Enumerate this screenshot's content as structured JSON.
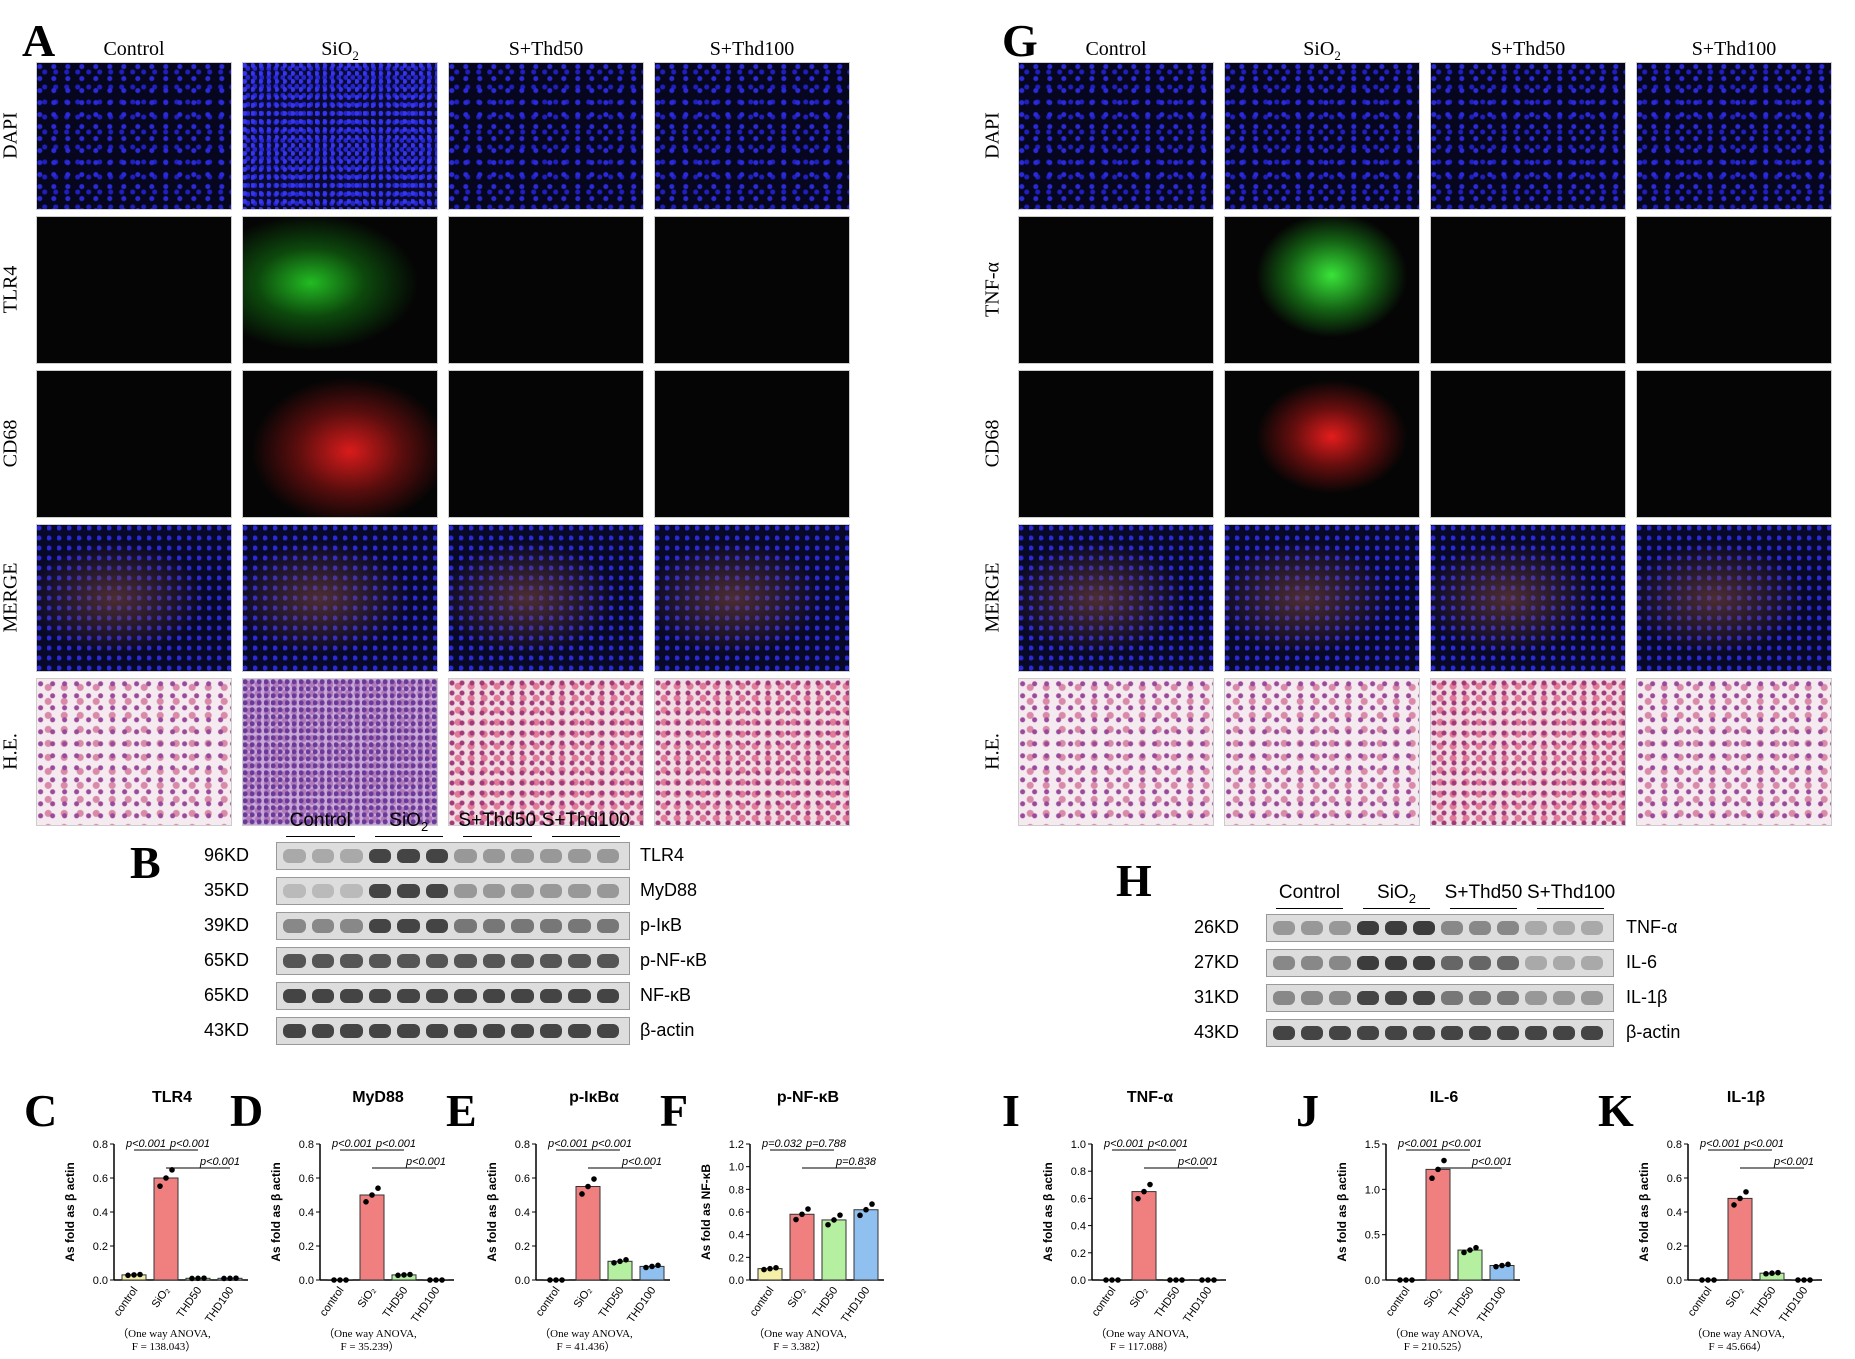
{
  "panels": {
    "A": "A",
    "B": "B",
    "C": "C",
    "D": "D",
    "E": "E",
    "F": "F",
    "G": "G",
    "H": "H",
    "I": "I",
    "J": "J",
    "K": "K"
  },
  "if_columns": [
    "Control",
    "SiO2",
    "S+Thd50",
    "S+Thd100"
  ],
  "left_if_rows": [
    "DAPI",
    "TLR4",
    "CD68",
    "MERGE",
    "H.E."
  ],
  "right_if_rows": [
    "DAPI",
    "TNF-α",
    "CD68",
    "MERGE",
    "H.E."
  ],
  "blot_B": {
    "groups": [
      "Control",
      "SiO2",
      "S+Thd50",
      "S+Thd100"
    ],
    "rows": [
      {
        "kd": "96KD",
        "protein": "TLR4"
      },
      {
        "kd": "35KD",
        "protein": "MyD88"
      },
      {
        "kd": "39KD",
        "protein": "p-IκB"
      },
      {
        "kd": "65KD",
        "protein": "p-NF-κB"
      },
      {
        "kd": "65KD",
        "protein": "NF-κB"
      },
      {
        "kd": "43KD",
        "protein": "β-actin"
      }
    ]
  },
  "blot_H": {
    "groups": [
      "Control",
      "SiO2",
      "S+Thd50",
      "S+Thd100"
    ],
    "rows": [
      {
        "kd": "26KD",
        "protein": "TNF-α"
      },
      {
        "kd": "27KD",
        "protein": "IL-6"
      },
      {
        "kd": "31KD",
        "protein": "IL-1β"
      },
      {
        "kd": "43KD",
        "protein": "β-actin"
      }
    ]
  },
  "ylabel": "As fold as β actin",
  "ylabel_F": "As fold as NF-κB",
  "colors": {
    "control": "#f5f0a8",
    "SiO2": "#f08080",
    "THD50": "#b4f0a0",
    "THD100": "#90c0f0"
  },
  "chart_data": [
    {
      "type": "bar",
      "panel": "C",
      "title": "TLR4",
      "categories": [
        "control",
        "SiO2",
        "THD50",
        "THD100"
      ],
      "values": [
        0.03,
        0.6,
        0.01,
        0.01
      ],
      "ylim": [
        0,
        0.8
      ],
      "yticks": [
        0.0,
        0.2,
        0.4,
        0.6,
        0.8
      ],
      "pvals": [
        "p<0.001",
        "p<0.001",
        "p<0.001"
      ],
      "anova": [
        "（One way ANOVA,",
        "F = 138.043）"
      ]
    },
    {
      "type": "bar",
      "panel": "D",
      "title": "MyD88",
      "categories": [
        "control",
        "SiO2",
        "THD50",
        "THD100"
      ],
      "values": [
        0.0,
        0.5,
        0.03,
        0.0
      ],
      "ylim": [
        0,
        0.8
      ],
      "yticks": [
        0.0,
        0.2,
        0.4,
        0.6,
        0.8
      ],
      "pvals": [
        "p<0.001",
        "p<0.001",
        "p<0.001"
      ],
      "anova": [
        "（One way ANOVA,",
        "F = 35.239）"
      ]
    },
    {
      "type": "bar",
      "panel": "E",
      "title": "p-IκBα",
      "categories": [
        "control",
        "SiO2",
        "THD50",
        "THD100"
      ],
      "values": [
        0.0,
        0.55,
        0.11,
        0.08
      ],
      "ylim": [
        0,
        0.8
      ],
      "yticks": [
        0.0,
        0.2,
        0.4,
        0.6,
        0.8
      ],
      "pvals": [
        "p<0.001",
        "p<0.001",
        "p<0.001"
      ],
      "anova": [
        "（One way ANOVA,",
        "F = 41.436）"
      ]
    },
    {
      "type": "bar",
      "panel": "F",
      "title": "p-NF-κB",
      "categories": [
        "control",
        "SiO2",
        "THD50",
        "THD100"
      ],
      "values": [
        0.1,
        0.58,
        0.53,
        0.62
      ],
      "ylim": [
        0,
        1.2
      ],
      "yticks": [
        0.0,
        0.2,
        0.4,
        0.6,
        0.8,
        1.0,
        1.2
      ],
      "pvals": [
        "p=0.032",
        "p=0.788",
        "p=0.838"
      ],
      "anova": [
        "（One way ANOVA,",
        "F = 3.382）"
      ]
    },
    {
      "type": "bar",
      "panel": "I",
      "title": "TNF-α",
      "categories": [
        "control",
        "SiO2",
        "THD50",
        "THD100"
      ],
      "values": [
        0.0,
        0.65,
        0.0,
        0.0
      ],
      "ylim": [
        0,
        1.0
      ],
      "yticks": [
        0.0,
        0.2,
        0.4,
        0.6,
        0.8,
        1.0
      ],
      "pvals": [
        "p<0.001",
        "p<0.001",
        "p<0.001"
      ],
      "anova": [
        "（One way ANOVA,",
        "F = 117.088）"
      ]
    },
    {
      "type": "bar",
      "panel": "J",
      "title": "IL-6",
      "categories": [
        "control",
        "SiO2",
        "THD50",
        "THD100"
      ],
      "values": [
        0.0,
        1.22,
        0.33,
        0.16
      ],
      "ylim": [
        0,
        1.5
      ],
      "yticks": [
        0.0,
        0.5,
        1.0,
        1.5
      ],
      "pvals": [
        "p<0.001",
        "p<0.001",
        "p<0.001"
      ],
      "anova": [
        "（One way ANOVA,",
        "F = 210.525）"
      ]
    },
    {
      "type": "bar",
      "panel": "K",
      "title": "IL-1β",
      "categories": [
        "control",
        "SiO2",
        "THD50",
        "THD100"
      ],
      "values": [
        0.0,
        0.48,
        0.04,
        0.0
      ],
      "ylim": [
        0,
        0.8
      ],
      "yticks": [
        0.0,
        0.2,
        0.4,
        0.6,
        0.8
      ],
      "pvals": [
        "p<0.001",
        "p<0.001",
        "p<0.001"
      ],
      "anova": [
        "（One way ANOVA,",
        "F = 45.664）"
      ]
    }
  ]
}
